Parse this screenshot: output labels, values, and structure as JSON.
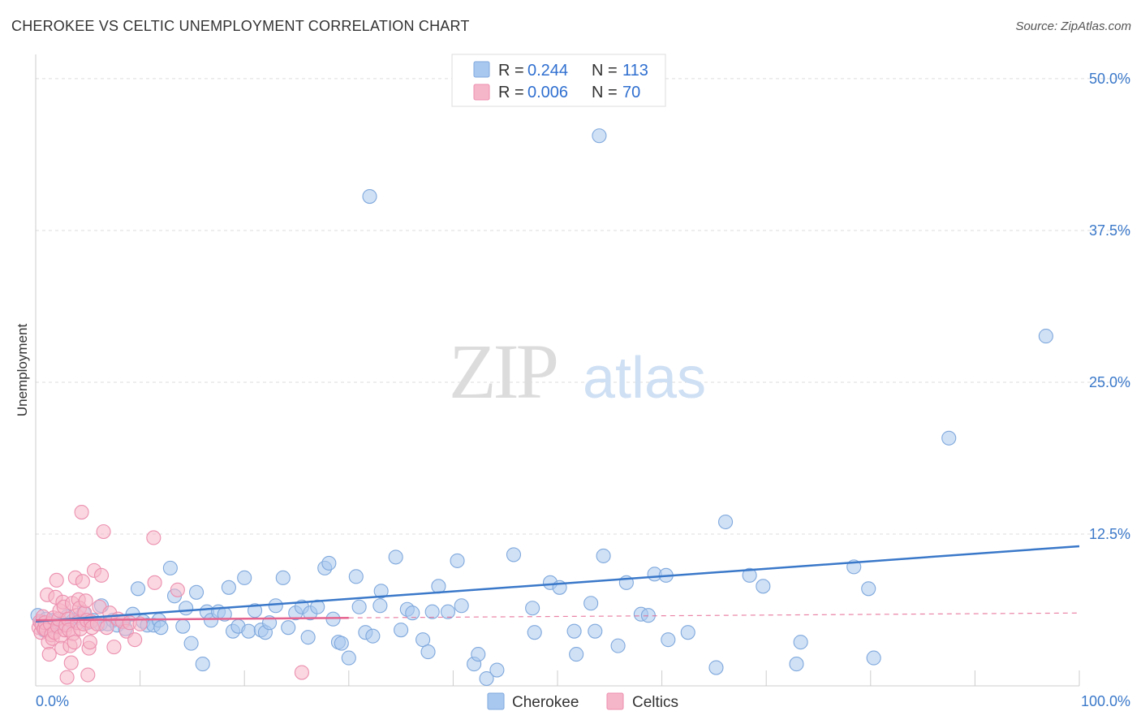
{
  "title": "CHEROKEE VS CELTIC UNEMPLOYMENT CORRELATION CHART",
  "source": "Source: ZipAtlas.com",
  "watermark": {
    "zip": "ZIP",
    "atlas": "atlas"
  },
  "legend": {
    "rows": [
      {
        "r_label": "R =",
        "r_value": "0.244",
        "n_label": "N =",
        "n_value": "113",
        "color": "#a9c8ef",
        "stroke": "#7fa8dc"
      },
      {
        "r_label": "R =",
        "r_value": "0.006",
        "n_label": "N =",
        "n_value": "70",
        "color": "#f6b6c9",
        "stroke": "#ec8fae"
      }
    ]
  },
  "bottom_legend": [
    {
      "label": "Cherokee",
      "color": "#a9c8ef",
      "stroke": "#7fa8dc"
    },
    {
      "label": "Celtics",
      "color": "#f6b6c9",
      "stroke": "#ec8fae"
    }
  ],
  "chart_data": {
    "type": "scatter",
    "title": "CHEROKEE VS CELTIC UNEMPLOYMENT CORRELATION CHART",
    "xlabel": "",
    "ylabel": "Unemployment",
    "xlim": [
      0,
      100
    ],
    "ylim": [
      0,
      52
    ],
    "x_tick_labels": [
      "0.0%",
      "100.0%"
    ],
    "y_ticks": [
      12.5,
      25.0,
      37.5,
      50.0
    ],
    "y_tick_labels": [
      "12.5%",
      "25.0%",
      "37.5%",
      "50.0%"
    ],
    "colors": {
      "cherokee": "#3a78c9",
      "celtics": "#e5648f",
      "cherokee_fill": "#a9c8ef",
      "celtics_fill": "#f6b6c9"
    },
    "series": [
      {
        "name": "Cherokee",
        "trend": {
          "x": [
            0,
            100
          ],
          "y": [
            5.3,
            11.5
          ],
          "style": "solid"
        },
        "points": [
          [
            0.2,
            5.8
          ],
          [
            0.5,
            5.2
          ],
          [
            0.8,
            4.6
          ],
          [
            1.0,
            5.5
          ],
          [
            1.3,
            4.9
          ],
          [
            1.7,
            5.4
          ],
          [
            2.0,
            4.8
          ],
          [
            2.5,
            5.1
          ],
          [
            3.0,
            5.7
          ],
          [
            3.5,
            5.3
          ],
          [
            4.2,
            5.6
          ],
          [
            4.6,
            6.0
          ],
          [
            4.9,
            5.2
          ],
          [
            5.5,
            5.4
          ],
          [
            6.2,
            5.1
          ],
          [
            6.3,
            6.6
          ],
          [
            6.9,
            5.1
          ],
          [
            7.4,
            5.4
          ],
          [
            7.8,
            5.0
          ],
          [
            8.4,
            5.3
          ],
          [
            8.6,
            4.7
          ],
          [
            9.3,
            5.9
          ],
          [
            9.8,
            8.0
          ],
          [
            10.3,
            5.3
          ],
          [
            10.7,
            5.0
          ],
          [
            11.3,
            5.0
          ],
          [
            11.8,
            5.4
          ],
          [
            12.0,
            4.8
          ],
          [
            12.9,
            9.7
          ],
          [
            13.3,
            7.4
          ],
          [
            14.1,
            4.9
          ],
          [
            14.4,
            6.4
          ],
          [
            14.9,
            3.5
          ],
          [
            15.4,
            7.7
          ],
          [
            16.0,
            1.8
          ],
          [
            16.4,
            6.1
          ],
          [
            16.8,
            5.4
          ],
          [
            17.5,
            6.1
          ],
          [
            18.1,
            5.9
          ],
          [
            18.5,
            8.1
          ],
          [
            18.9,
            4.5
          ],
          [
            19.4,
            4.9
          ],
          [
            20.0,
            8.9
          ],
          [
            20.4,
            4.5
          ],
          [
            21.0,
            6.2
          ],
          [
            21.6,
            4.6
          ],
          [
            22.0,
            4.4
          ],
          [
            22.4,
            5.2
          ],
          [
            23.0,
            6.6
          ],
          [
            23.7,
            8.9
          ],
          [
            24.2,
            4.8
          ],
          [
            24.9,
            6.0
          ],
          [
            25.5,
            6.5
          ],
          [
            26.1,
            4.0
          ],
          [
            26.3,
            6.0
          ],
          [
            27.0,
            6.5
          ],
          [
            27.7,
            9.7
          ],
          [
            28.1,
            10.1
          ],
          [
            28.5,
            5.5
          ],
          [
            29.0,
            3.6
          ],
          [
            29.3,
            3.5
          ],
          [
            30.0,
            2.3
          ],
          [
            30.7,
            9.0
          ],
          [
            31.0,
            6.5
          ],
          [
            31.6,
            4.4
          ],
          [
            32.0,
            40.3
          ],
          [
            32.3,
            4.1
          ],
          [
            33.0,
            6.6
          ],
          [
            33.1,
            7.8
          ],
          [
            34.5,
            10.6
          ],
          [
            35.0,
            4.6
          ],
          [
            35.6,
            6.3
          ],
          [
            36.1,
            6.0
          ],
          [
            37.1,
            3.8
          ],
          [
            37.6,
            2.8
          ],
          [
            38.0,
            6.1
          ],
          [
            38.6,
            8.2
          ],
          [
            39.5,
            6.1
          ],
          [
            40.4,
            10.3
          ],
          [
            40.8,
            6.6
          ],
          [
            42.0,
            1.8
          ],
          [
            42.4,
            2.6
          ],
          [
            43.2,
            0.6
          ],
          [
            44.2,
            1.3
          ],
          [
            45.8,
            10.8
          ],
          [
            47.6,
            6.4
          ],
          [
            47.8,
            4.4
          ],
          [
            49.3,
            8.5
          ],
          [
            50.2,
            8.1
          ],
          [
            51.6,
            4.5
          ],
          [
            51.8,
            2.6
          ],
          [
            53.2,
            6.8
          ],
          [
            53.6,
            4.5
          ],
          [
            54.0,
            45.3
          ],
          [
            54.4,
            10.7
          ],
          [
            55.8,
            3.3
          ],
          [
            56.6,
            8.5
          ],
          [
            58.0,
            5.9
          ],
          [
            58.7,
            5.8
          ],
          [
            59.3,
            9.2
          ],
          [
            60.4,
            9.1
          ],
          [
            60.6,
            3.8
          ],
          [
            62.5,
            4.4
          ],
          [
            65.2,
            1.5
          ],
          [
            66.1,
            13.5
          ],
          [
            68.4,
            9.1
          ],
          [
            69.7,
            8.2
          ],
          [
            72.9,
            1.8
          ],
          [
            73.3,
            3.6
          ],
          [
            78.4,
            9.8
          ],
          [
            79.8,
            8.0
          ],
          [
            80.3,
            2.3
          ],
          [
            87.5,
            20.4
          ],
          [
            96.8,
            28.8
          ]
        ]
      },
      {
        "name": "Celtics",
        "trend": {
          "x": [
            0,
            30
          ],
          "y": [
            5.4,
            5.6
          ],
          "style": "solid",
          "extended": {
            "x": [
              30,
              100
            ],
            "y": [
              5.6,
              6.0
            ],
            "style": "dashed"
          }
        },
        "points": [
          [
            0.3,
            4.8
          ],
          [
            0.4,
            5.3
          ],
          [
            0.5,
            4.4
          ],
          [
            0.6,
            5.0
          ],
          [
            0.7,
            5.7
          ],
          [
            0.8,
            4.7
          ],
          [
            0.9,
            5.2
          ],
          [
            1.0,
            4.6
          ],
          [
            1.1,
            7.5
          ],
          [
            1.2,
            3.6
          ],
          [
            1.3,
            2.6
          ],
          [
            1.4,
            5.1
          ],
          [
            1.5,
            4.2
          ],
          [
            1.6,
            3.9
          ],
          [
            1.7,
            5.6
          ],
          [
            1.8,
            4.4
          ],
          [
            1.9,
            7.3
          ],
          [
            2.0,
            8.7
          ],
          [
            2.1,
            4.9
          ],
          [
            2.2,
            5.5
          ],
          [
            2.3,
            6.2
          ],
          [
            2.4,
            4.1
          ],
          [
            2.5,
            3.1
          ],
          [
            2.6,
            6.9
          ],
          [
            2.7,
            6.5
          ],
          [
            2.8,
            4.6
          ],
          [
            2.9,
            5.0
          ],
          [
            3.0,
            0.7
          ],
          [
            3.1,
            5.5
          ],
          [
            3.2,
            4.6
          ],
          [
            3.3,
            3.3
          ],
          [
            3.4,
            1.9
          ],
          [
            3.5,
            6.8
          ],
          [
            3.6,
            4.3
          ],
          [
            3.7,
            3.6
          ],
          [
            3.8,
            8.9
          ],
          [
            3.9,
            5.8
          ],
          [
            4.0,
            5.2
          ],
          [
            4.1,
            7.1
          ],
          [
            4.2,
            6.4
          ],
          [
            4.3,
            4.7
          ],
          [
            4.4,
            14.3
          ],
          [
            4.5,
            8.6
          ],
          [
            4.6,
            5.1
          ],
          [
            4.7,
            6.0
          ],
          [
            4.8,
            7.0
          ],
          [
            4.9,
            5.4
          ],
          [
            5.0,
            0.9
          ],
          [
            5.1,
            3.1
          ],
          [
            5.2,
            3.6
          ],
          [
            5.3,
            5.3
          ],
          [
            5.4,
            4.8
          ],
          [
            5.6,
            9.5
          ],
          [
            5.9,
            5.1
          ],
          [
            6.1,
            6.5
          ],
          [
            6.3,
            9.1
          ],
          [
            6.5,
            12.7
          ],
          [
            6.8,
            4.8
          ],
          [
            7.1,
            6.0
          ],
          [
            7.5,
            3.2
          ],
          [
            7.9,
            5.5
          ],
          [
            8.3,
            5.3
          ],
          [
            8.7,
            4.5
          ],
          [
            9.0,
            5.2
          ],
          [
            9.5,
            3.8
          ],
          [
            10.0,
            5.1
          ],
          [
            11.3,
            12.2
          ],
          [
            11.4,
            8.5
          ],
          [
            13.6,
            7.9
          ],
          [
            25.5,
            1.1
          ]
        ]
      }
    ]
  }
}
